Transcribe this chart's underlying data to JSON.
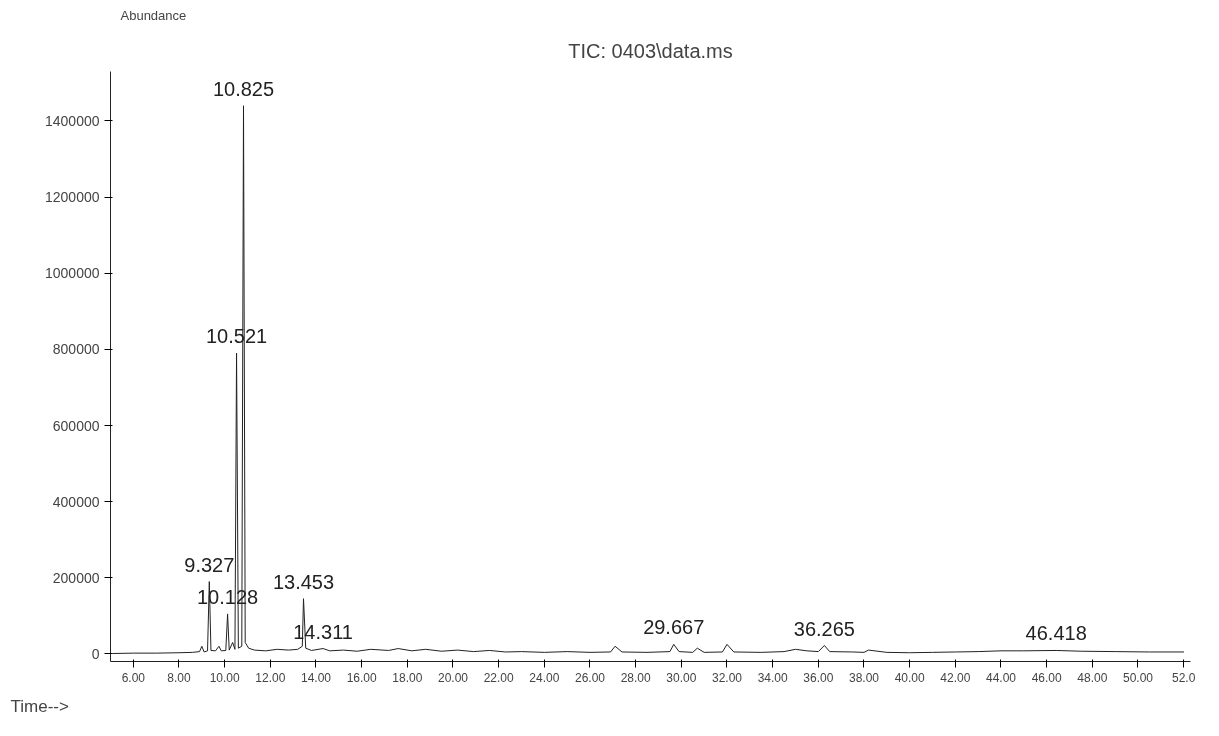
{
  "chart_data": {
    "type": "line",
    "title": "TIC: 0403\\data.ms",
    "ylabel": "Abundance",
    "xlabel": "Time-->",
    "x": [
      5.1,
      6.0,
      7.0,
      8.0,
      8.6,
      8.9,
      9.0,
      9.1,
      9.25,
      9.327,
      9.4,
      9.6,
      9.75,
      9.85,
      10.05,
      10.128,
      10.2,
      10.35,
      10.45,
      10.521,
      10.6,
      10.75,
      10.825,
      10.9,
      11.05,
      11.3,
      11.8,
      12.3,
      12.8,
      13.2,
      13.4,
      13.453,
      13.55,
      13.8,
      14.311,
      14.6,
      15.2,
      15.8,
      16.4,
      17.18,
      17.6,
      18.2,
      18.8,
      19.5,
      20.2,
      20.9,
      21.6,
      22.3,
      23.0,
      24.0,
      25.0,
      26.0,
      26.9,
      27.1,
      27.4,
      28.5,
      29.5,
      29.667,
      29.9,
      30.5,
      30.7,
      31.0,
      31.8,
      32.0,
      32.3,
      33.5,
      34.5,
      35.0,
      35.5,
      36.0,
      36.265,
      36.5,
      37.5,
      38.0,
      38.2,
      39.0,
      40.0,
      41.0,
      42.0,
      43.0,
      44.0,
      45.0,
      46.418,
      47.5,
      49.0,
      50.5,
      52.0
    ],
    "series": [
      {
        "color": "#222222",
        "values": [
          1000,
          2000,
          2000,
          3000,
          4000,
          6000,
          20000,
          5000,
          8000,
          190000,
          9000,
          8000,
          20000,
          8000,
          9000,
          105000,
          10000,
          30000,
          12000,
          790000,
          15000,
          20000,
          1440000,
          30000,
          15000,
          10000,
          8000,
          12000,
          10000,
          12000,
          20000,
          145000,
          15000,
          9000,
          14000,
          8000,
          10000,
          7000,
          12000,
          9000,
          14000,
          8000,
          12000,
          7000,
          10000,
          6000,
          9000,
          5000,
          6000,
          4000,
          6000,
          4000,
          5000,
          20000,
          5000,
          4000,
          6000,
          25000,
          6000,
          4000,
          15000,
          4000,
          5000,
          25000,
          5000,
          4000,
          6000,
          12000,
          8000,
          6000,
          22000,
          6000,
          5000,
          4000,
          10000,
          4000,
          3000,
          4000,
          5000,
          6000,
          8000,
          8000,
          9000,
          7000,
          6000,
          5000,
          5000
        ]
      }
    ],
    "xlim": [
      5.0,
      52.3
    ],
    "ylim": [
      -20000,
      1530000
    ],
    "xticks": [
      {
        "value": 6,
        "label": "6.00"
      },
      {
        "value": 8,
        "label": "8.00"
      },
      {
        "value": 10,
        "label": "10.00"
      },
      {
        "value": 12,
        "label": "12.00"
      },
      {
        "value": 14,
        "label": "14.00"
      },
      {
        "value": 16,
        "label": "16.00"
      },
      {
        "value": 18,
        "label": "18.00"
      },
      {
        "value": 20,
        "label": "20.00"
      },
      {
        "value": 22,
        "label": "22.00"
      },
      {
        "value": 24,
        "label": "24.00"
      },
      {
        "value": 26,
        "label": "26.00"
      },
      {
        "value": 28,
        "label": "28.00"
      },
      {
        "value": 30,
        "label": "30.00"
      },
      {
        "value": 32,
        "label": "32.00"
      },
      {
        "value": 34,
        "label": "34.00"
      },
      {
        "value": 36,
        "label": "36.00"
      },
      {
        "value": 38,
        "label": "38.00"
      },
      {
        "value": 40,
        "label": "40.00"
      },
      {
        "value": 42,
        "label": "42.00"
      },
      {
        "value": 44,
        "label": "44.00"
      },
      {
        "value": 46,
        "label": "46.00"
      },
      {
        "value": 48,
        "label": "48.00"
      },
      {
        "value": 50,
        "label": "50.00"
      },
      {
        "value": 52,
        "label": "52.0"
      }
    ],
    "yticks": [
      {
        "value": 0,
        "label": "0"
      },
      {
        "value": 200000,
        "label": "200000"
      },
      {
        "value": 400000,
        "label": "400000"
      },
      {
        "value": 600000,
        "label": "600000"
      },
      {
        "value": 800000,
        "label": "800000"
      },
      {
        "value": 1000000,
        "label": "1000000"
      },
      {
        "value": 1200000,
        "label": "1200000"
      },
      {
        "value": 1400000,
        "label": "1400000"
      }
    ],
    "annotations": [
      {
        "text": "10.825",
        "x": 10.825,
        "y": 1440000
      },
      {
        "text": "10.521",
        "x": 10.521,
        "y": 790000
      },
      {
        "text": "9.327",
        "x": 9.327,
        "y": 190000
      },
      {
        "text": "10.128",
        "x": 10.128,
        "y": 105000
      },
      {
        "text": "13.453",
        "x": 13.453,
        "y": 145000
      },
      {
        "text": "14.311",
        "x": 14.311,
        "y": 14000
      },
      {
        "text": "29.667",
        "x": 29.667,
        "y": 25000
      },
      {
        "text": "36.265",
        "x": 36.265,
        "y": 22000
      },
      {
        "text": "46.418",
        "x": 46.418,
        "y": 9000
      }
    ],
    "grid": false,
    "marker": "none",
    "line_style": "solid"
  }
}
